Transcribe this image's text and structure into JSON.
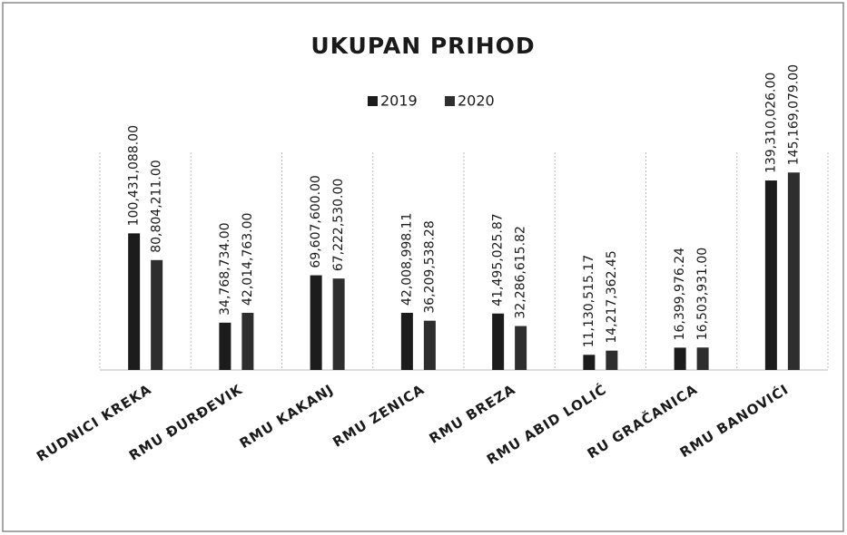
{
  "chart_data": {
    "type": "bar",
    "title": "UKUPAN PRIHOD",
    "categories": [
      "RUDNICI KREKA",
      "RMU ĐURĐEVIK",
      "RMU KAKANJ",
      "RMU ZENICA",
      "RMU BREZA",
      "RMU ABID LOLIĆ",
      "RU GRAČANICA",
      "RMU BANOVIĆI"
    ],
    "series": [
      {
        "name": "2019",
        "color": "#1c1c1c",
        "values": [
          100431088.0,
          34768734.0,
          69607600.0,
          42008998.11,
          41495025.87,
          11130515.17,
          16399976.24,
          139310026.0
        ],
        "value_labels": [
          "100,431,088.00",
          "34,768,734.00",
          "69,607,600.00",
          "42,008,998.11",
          "41,495,025.87",
          "11,130,515.17",
          "16,399,976.24",
          "139,310,026.00"
        ]
      },
      {
        "name": "2020",
        "color": "#2e2e2e",
        "values": [
          80804211.0,
          42014763.0,
          67222530.0,
          36209538.28,
          32286615.82,
          14217362.45,
          16503931.0,
          145169079.0
        ],
        "value_labels": [
          "80,804,211.00",
          "42,014,763.00",
          "67,222,530.00",
          "36,209,538.28",
          "32,286,615.82",
          "14,217,362.45",
          "16,503,931.00",
          "145,169,079.00"
        ]
      }
    ],
    "ylim": [
      0,
      160000000
    ],
    "grid": true,
    "legend": "top"
  }
}
